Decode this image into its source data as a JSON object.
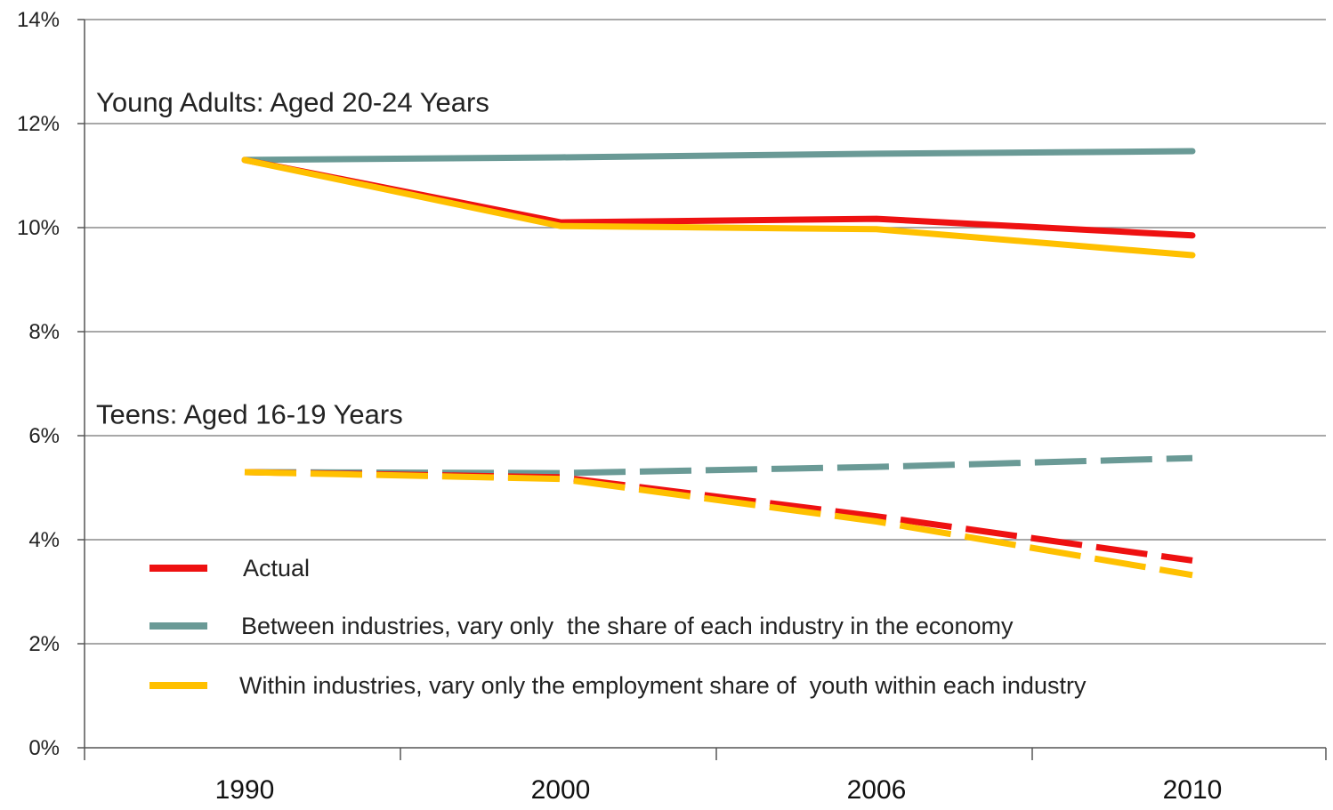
{
  "chart_data": {
    "type": "line",
    "x": [
      "1990",
      "2000",
      "2006",
      "2010"
    ],
    "ylim": [
      0,
      14
    ],
    "yticks": [
      0,
      2,
      4,
      6,
      8,
      10,
      12,
      14
    ],
    "ytick_format": "%",
    "grid": true,
    "legend_placement": "bottom-left",
    "group_labels": [
      {
        "text": "Young Adults: Aged 20-24 Years",
        "at_y": 12.4
      },
      {
        "text": "Teens: Aged 16-19 Years",
        "at_y": 6.4
      }
    ],
    "legend": [
      {
        "label": "Actual",
        "color": "#ee1111"
      },
      {
        "label": "Between industries, vary only  the share of each industry in the economy",
        "color": "#6a9a96"
      },
      {
        "label": "Within industries, vary only the employment share of  youth within each industry",
        "color": "#ffc000"
      }
    ],
    "series": [
      {
        "group": "Young Adults",
        "kind": "Between industries",
        "style": "solid",
        "color": "#6a9a96",
        "values": [
          11.3,
          11.35,
          11.42,
          11.47
        ]
      },
      {
        "group": "Young Adults",
        "kind": "Actual",
        "style": "solid",
        "color": "#ee1111",
        "values": [
          11.3,
          10.1,
          10.17,
          9.85
        ]
      },
      {
        "group": "Young Adults",
        "kind": "Within industries",
        "style": "solid",
        "color": "#ffc000",
        "values": [
          11.3,
          10.03,
          9.97,
          9.47
        ]
      },
      {
        "group": "Teens",
        "kind": "Between industries",
        "style": "dashed",
        "color": "#6a9a96",
        "values": [
          5.3,
          5.28,
          5.4,
          5.57
        ]
      },
      {
        "group": "Teens",
        "kind": "Actual",
        "style": "dashed",
        "color": "#ee1111",
        "values": [
          5.3,
          5.2,
          4.45,
          3.6
        ]
      },
      {
        "group": "Teens",
        "kind": "Within industries",
        "style": "dashed",
        "color": "#ffc000",
        "values": [
          5.3,
          5.17,
          4.35,
          3.32
        ]
      }
    ]
  }
}
